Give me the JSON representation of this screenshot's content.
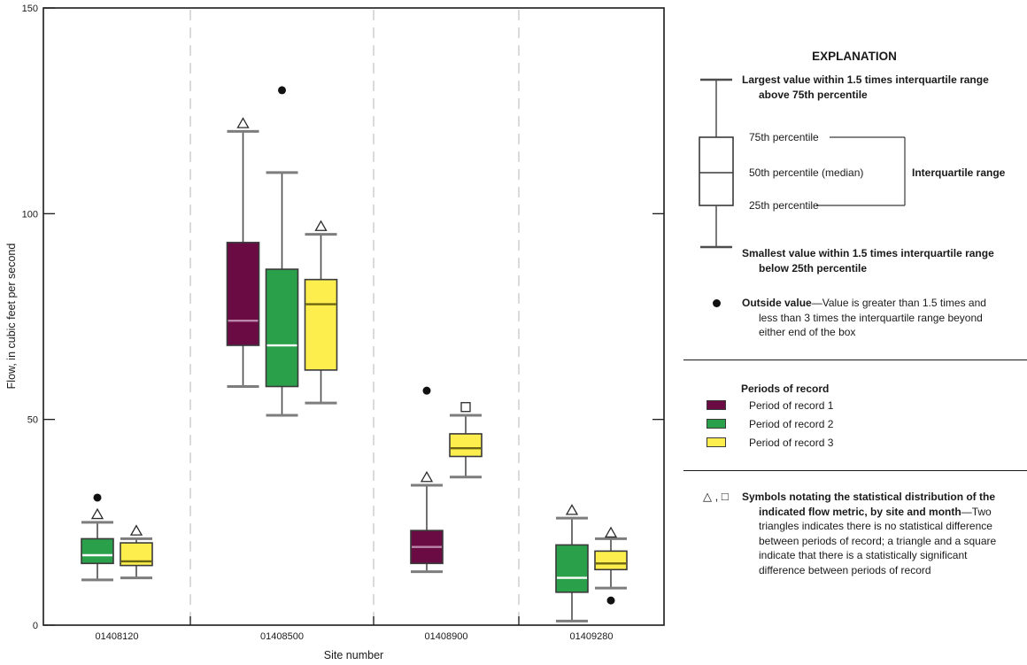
{
  "chart_data": {
    "type": "boxplot",
    "title": "",
    "xlabel": "Site number",
    "ylabel": "Flow, in cubic feet per second",
    "ylim": [
      0,
      150
    ],
    "yticks": [
      0,
      50,
      100,
      150
    ],
    "categories": [
      "01408120",
      "01408500",
      "01408900",
      "01409280"
    ],
    "legend_position": "right",
    "series": [
      {
        "name": "Period of record 1",
        "color": "#6b0b44",
        "median_color": "#bb86a9"
      },
      {
        "name": "Period of record 2",
        "color": "#2ba04a",
        "median_color": "#ffffff"
      },
      {
        "name": "Period of record 3",
        "color": "#fdee4d",
        "median_color": "#6b6411"
      }
    ],
    "boxes": [
      {
        "site": "01408120",
        "period": 2,
        "whisker_low": 11,
        "q1": 15,
        "median": 17,
        "q3": 21,
        "whisker_high": 25,
        "symbols": [
          {
            "type": "triangle",
            "value": 27
          }
        ],
        "outliers": [
          31
        ]
      },
      {
        "site": "01408120",
        "period": 3,
        "whisker_low": 11.5,
        "q1": 14.5,
        "median": 15.5,
        "q3": 20,
        "whisker_high": 21,
        "symbols": [
          {
            "type": "triangle",
            "value": 23
          }
        ],
        "outliers": []
      },
      {
        "site": "01408500",
        "period": 1,
        "whisker_low": 58,
        "q1": 68,
        "median": 74,
        "q3": 93,
        "whisker_high": 120,
        "symbols": [
          {
            "type": "triangle",
            "value": 122
          }
        ],
        "outliers": []
      },
      {
        "site": "01408500",
        "period": 2,
        "whisker_low": 51,
        "q1": 58,
        "median": 68,
        "q3": 86.5,
        "whisker_high": 110,
        "symbols": [],
        "outliers": [
          130
        ]
      },
      {
        "site": "01408500",
        "period": 3,
        "whisker_low": 54,
        "q1": 62,
        "median": 78,
        "q3": 84,
        "whisker_high": 95,
        "symbols": [
          {
            "type": "triangle",
            "value": 97
          }
        ],
        "outliers": []
      },
      {
        "site": "01408900",
        "period": 1,
        "whisker_low": 13,
        "q1": 15,
        "median": 19,
        "q3": 23,
        "whisker_high": 34,
        "symbols": [
          {
            "type": "triangle",
            "value": 36
          }
        ],
        "outliers": [
          57
        ]
      },
      {
        "site": "01408900",
        "period": 3,
        "whisker_low": 36,
        "q1": 41,
        "median": 43,
        "q3": 46.5,
        "whisker_high": 51,
        "symbols": [
          {
            "type": "square",
            "value": 53
          }
        ],
        "outliers": []
      },
      {
        "site": "01409280",
        "period": 2,
        "whisker_low": 1,
        "q1": 8,
        "median": 11.5,
        "q3": 19.5,
        "whisker_high": 26,
        "symbols": [
          {
            "type": "triangle",
            "value": 28
          }
        ],
        "outliers": []
      },
      {
        "site": "01409280",
        "period": 3,
        "whisker_low": 9,
        "q1": 13.5,
        "median": 15,
        "q3": 18,
        "whisker_high": 21,
        "symbols": [
          {
            "type": "triangle",
            "value": 22.5
          }
        ],
        "outliers": [
          6
        ]
      }
    ]
  },
  "legend": {
    "title": "EXPLANATION",
    "largest_label": "Largest value within 1.5 times interquartile range\nabove 75th percentile",
    "pct75": "75th percentile",
    "pct50": "50th percentile (median)",
    "pct25": "25th percentile",
    "iqr_label": "Interquartile range",
    "smallest_label": "Smallest value within 1.5 times interquartile range\nbelow 25th percentile",
    "outside": {
      "lead": "Outside value",
      "rest": "—Value is greater than 1.5 times and\nless than 3 times the interquartile range beyond\neither end of the box"
    },
    "periods": {
      "header": "Periods of record",
      "items": [
        {
          "label": "Period of record 1",
          "color": "#6b0b44"
        },
        {
          "label": "Period of record 2",
          "color": "#2ba04a"
        },
        {
          "label": "Period of record 3",
          "color": "#fdee4d"
        }
      ]
    },
    "symbols": {
      "glyphs": "△ , □",
      "lead": "Symbols notating the statistical distribution of the\nindicated flow metric, by site and month",
      "rest": "—Two\ntriangles indicates there is no statistical difference\nbetween periods of record; a triangle and a square\nindicate that there is a statistically significant\ndifference between periods of record"
    }
  }
}
